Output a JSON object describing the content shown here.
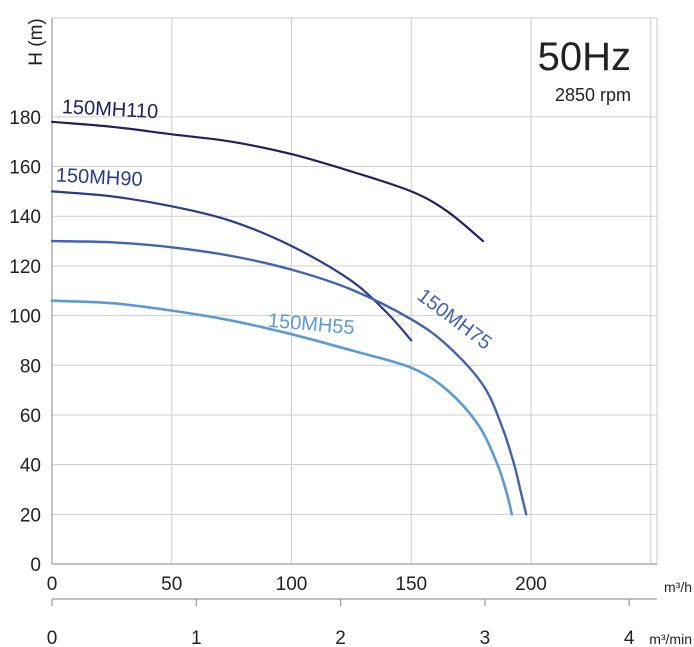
{
  "chart_data": {
    "type": "line",
    "title": "50Hz",
    "subtitle": "2850 rpm",
    "ylabel": "H (m)",
    "xlabel": "m³/h",
    "x2label": "m³/min",
    "xlim": [
      0,
      265
    ],
    "ylim": [
      0,
      200
    ],
    "x_ticks": [
      "0",
      "50",
      "100",
      "150",
      "200"
    ],
    "x_tick_values": [
      0,
      50,
      100,
      150,
      200
    ],
    "y_ticks": [
      "0",
      "20",
      "40",
      "60",
      "80",
      "100",
      "120",
      "140",
      "160",
      "180"
    ],
    "y_tick_values": [
      0,
      20,
      40,
      60,
      80,
      100,
      120,
      140,
      160,
      180
    ],
    "x2_ticks": [
      "0",
      "1",
      "2",
      "3",
      "4"
    ],
    "x2_tick_values": [
      0,
      1,
      2,
      3,
      4
    ],
    "grid": true,
    "series": [
      {
        "name": "150MH110",
        "color": "#1f2160",
        "x": [
          0,
          25,
          50,
          75,
          100,
          125,
          150,
          165,
          180
        ],
        "y": [
          178,
          176,
          173,
          170,
          165,
          158,
          150,
          142,
          130
        ]
      },
      {
        "name": "150MH90",
        "color": "#2c3b8a",
        "x": [
          0,
          25,
          50,
          75,
          100,
          125,
          140,
          150
        ],
        "y": [
          150,
          148,
          144,
          138,
          128,
          114,
          101,
          90
        ]
      },
      {
        "name": "150MH75",
        "color": "#4163b0",
        "x": [
          0,
          25,
          50,
          75,
          100,
          125,
          150,
          165,
          180,
          188,
          193,
          196,
          198
        ],
        "y": [
          130,
          129.5,
          127.5,
          124,
          118.5,
          110.5,
          98.5,
          88,
          72,
          55,
          40,
          28,
          20
        ]
      },
      {
        "name": "150MH55",
        "color": "#5b9ad5",
        "x": [
          0,
          25,
          50,
          75,
          100,
          125,
          150,
          165,
          178,
          186,
          190,
          192
        ],
        "y": [
          106,
          105,
          102,
          98,
          92.5,
          86,
          79,
          70,
          56,
          40,
          28,
          20
        ]
      }
    ]
  }
}
